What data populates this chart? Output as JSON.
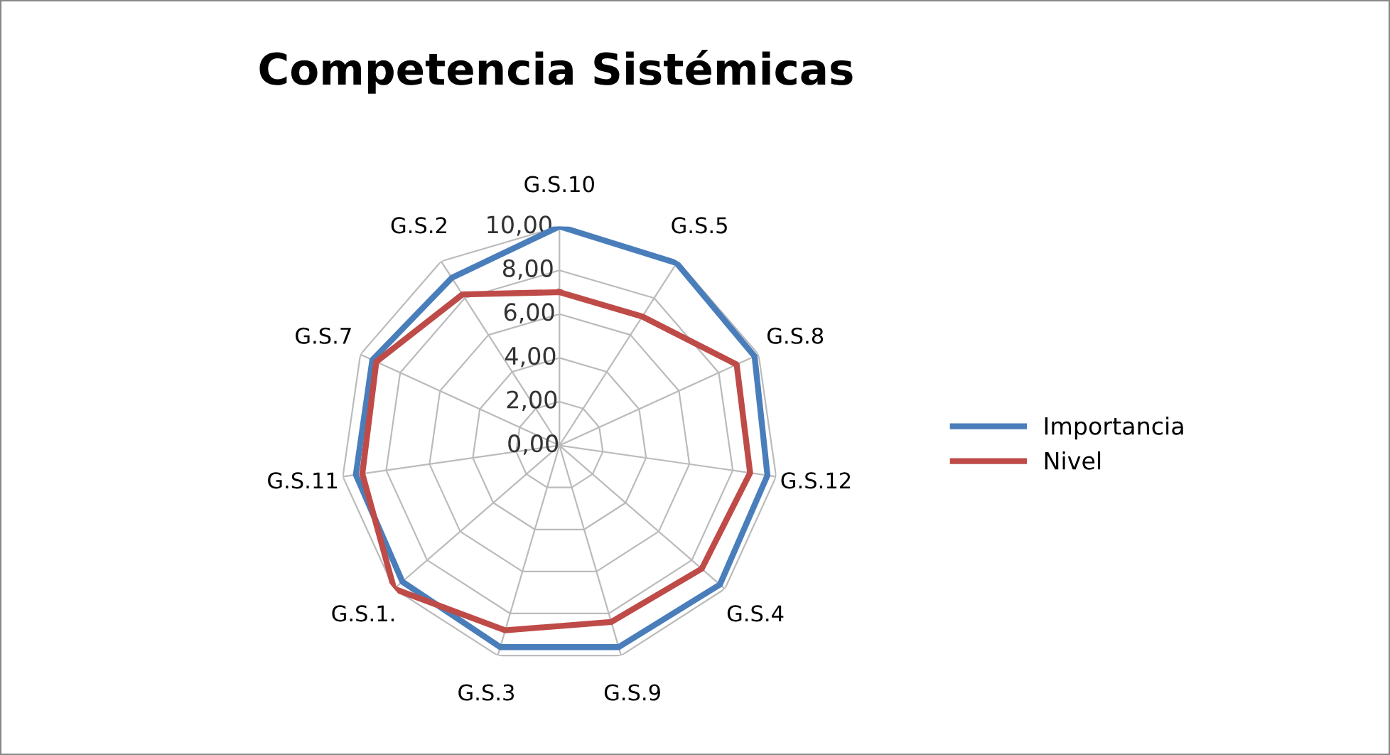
{
  "chart_data": {
    "type": "radar",
    "title": "Competencia Sistémicas",
    "categories": [
      "G.S.10",
      "G.S.5",
      "G.S.8",
      "G.S.12",
      "G.S.4",
      "G.S.9",
      "G.S.3",
      "G.S.1.",
      "G.S.11",
      "G.S.7",
      "G.S.2"
    ],
    "series": [
      {
        "name": "Importancia",
        "color": "#4a7ebb",
        "values": [
          10.0,
          9.9,
          9.8,
          9.6,
          9.7,
          9.6,
          9.6,
          9.5,
          9.4,
          9.4,
          9.1
        ]
      },
      {
        "name": "Nivel",
        "color": "#be4b48",
        "values": [
          7.0,
          7.0,
          8.9,
          8.8,
          8.6,
          8.4,
          8.8,
          10.0,
          9.1,
          9.2,
          8.2
        ]
      }
    ],
    "ylim": [
      0,
      10
    ],
    "yticks": [
      {
        "value": 0,
        "label": "0,00"
      },
      {
        "value": 2,
        "label": "2,00"
      },
      {
        "value": 4,
        "label": "4,00"
      },
      {
        "value": 6,
        "label": "6,00"
      },
      {
        "value": 8,
        "label": "8,00"
      },
      {
        "value": 10,
        "label": "10,00"
      }
    ],
    "grid": true,
    "legend": "right",
    "marker": "none"
  }
}
